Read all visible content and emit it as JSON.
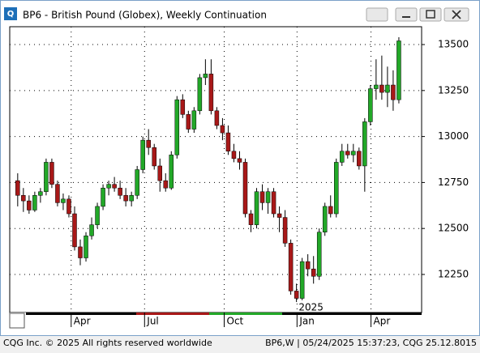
{
  "window": {
    "title": "BP6 - British Pound (Globex), Weekly Continuation"
  },
  "chart_data": {
    "type": "candlestick",
    "open": [
      12760,
      12680,
      12650,
      12600,
      12680,
      12700,
      12860,
      12740,
      12640,
      12660,
      12580,
      12400,
      12340,
      12460,
      12520,
      12620,
      12720,
      12740,
      12720,
      12680,
      12650,
      12680,
      12820,
      12980,
      12940,
      12840,
      12760,
      12720,
      12900,
      13200,
      13120,
      13040,
      13140,
      13320,
      13340,
      13140,
      13060,
      13020,
      12920,
      12880,
      12860,
      12580,
      12520,
      12700,
      12640,
      12700,
      12580,
      12560,
      12420,
      12160,
      12120,
      12320,
      12280,
      12240,
      12480,
      12620,
      12580,
      12860,
      12920,
      12900,
      12920,
      12840,
      13080,
      13260,
      13280,
      13240,
      13280,
      13200
    ],
    "high": [
      12800,
      12720,
      12680,
      12700,
      12720,
      12880,
      12880,
      12760,
      12690,
      12680,
      12620,
      12440,
      12480,
      12560,
      12640,
      12740,
      12760,
      12780,
      12760,
      12720,
      12700,
      12840,
      13000,
      13040,
      12960,
      12880,
      12800,
      12920,
      13220,
      13230,
      13140,
      13160,
      13340,
      13420,
      13420,
      13160,
      13100,
      13060,
      12960,
      12920,
      12880,
      12600,
      12720,
      12740,
      12720,
      12720,
      12620,
      12600,
      12440,
      12200,
      12340,
      12360,
      12350,
      12500,
      12640,
      12680,
      12880,
      12960,
      12960,
      12960,
      12940,
      13100,
      13280,
      13420,
      13440,
      13380,
      13360,
      13540
    ],
    "low": [
      12620,
      12590,
      12580,
      12590,
      12640,
      12680,
      12720,
      12620,
      12600,
      12560,
      12380,
      12300,
      12320,
      12440,
      12500,
      12600,
      12680,
      12700,
      12660,
      12620,
      12620,
      12660,
      12800,
      12900,
      12820,
      12700,
      12700,
      12710,
      12880,
      13100,
      13020,
      13020,
      13120,
      13280,
      13120,
      13040,
      12980,
      12900,
      12860,
      12820,
      12560,
      12480,
      12500,
      12600,
      12580,
      12560,
      12480,
      12400,
      12140,
      12100,
      12110,
      12240,
      12200,
      12220,
      12460,
      12560,
      12560,
      12840,
      12880,
      12860,
      12820,
      12700,
      13060,
      13200,
      13200,
      13160,
      13140,
      13180
    ],
    "close": [
      12680,
      12650,
      12600,
      12680,
      12700,
      12860,
      12740,
      12640,
      12660,
      12580,
      12400,
      12340,
      12460,
      12520,
      12620,
      12720,
      12740,
      12720,
      12680,
      12650,
      12680,
      12820,
      12980,
      12940,
      12840,
      12760,
      12720,
      12900,
      13200,
      13120,
      13040,
      13140,
      13320,
      13340,
      13140,
      13060,
      13020,
      12920,
      12880,
      12860,
      12580,
      12520,
      12700,
      12640,
      12700,
      12580,
      12560,
      12420,
      12160,
      12120,
      12320,
      12280,
      12240,
      12480,
      12620,
      12580,
      12860,
      12920,
      12900,
      12920,
      12840,
      13080,
      13260,
      13280,
      13240,
      13280,
      13200,
      13520
    ],
    "up_color": "#22a828",
    "down_color": "#a81818",
    "ylim": [
      12043,
      13597
    ],
    "yticks": [
      12250,
      12500,
      12750,
      13000,
      13250,
      13500
    ],
    "xlim": [
      -1.4,
      71
    ],
    "xticks": [
      {
        "value": 9.4,
        "label": "Apr"
      },
      {
        "value": 22.3,
        "label": "Jul"
      },
      {
        "value": 36.3,
        "label": "Oct"
      },
      {
        "value": 49.1,
        "label": "Jan"
      },
      {
        "value": 62.1,
        "label": "Apr"
      }
    ],
    "year_label": "2025",
    "grid": true
  },
  "footer": {
    "left": "CQG Inc. © 2025 All rights reserved worldwide",
    "right": "BP6,W | 05/24/2025 15:37:23, CQG 25.12.8015"
  }
}
